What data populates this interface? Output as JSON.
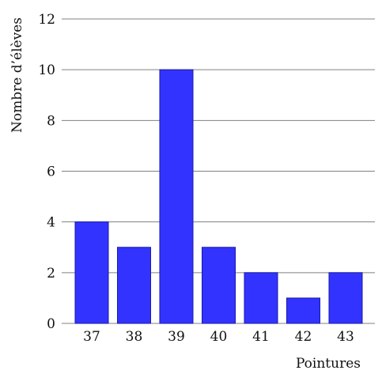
{
  "chart_data": {
    "type": "bar",
    "title": "",
    "xlabel": "Pointures",
    "ylabel": "Nombre d’élèves",
    "categories": [
      "37",
      "38",
      "39",
      "40",
      "41",
      "42",
      "43"
    ],
    "values": [
      4,
      3,
      10,
      3,
      2,
      1,
      2
    ],
    "ylim": [
      0,
      12
    ],
    "yticks": [
      0,
      2,
      4,
      6,
      8,
      10,
      12
    ],
    "grid": true,
    "bar_color": "#3333ff",
    "grid_color": "#808080"
  }
}
